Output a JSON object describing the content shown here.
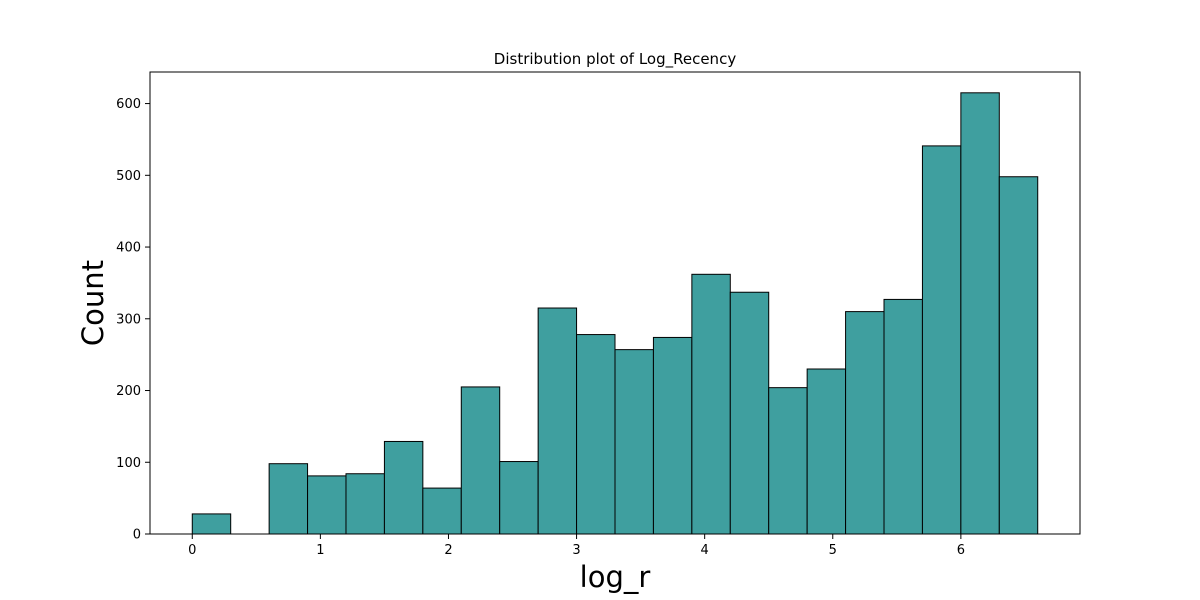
{
  "chart_data": {
    "type": "bar",
    "title": "Distribution plot of Log_Recency",
    "xlabel": "log_r",
    "ylabel": "Count",
    "xlim": [
      -0.33,
      6.93
    ],
    "ylim": [
      0,
      644
    ],
    "xticks": [
      0,
      1,
      2,
      3,
      4,
      5,
      6
    ],
    "yticks": [
      0,
      100,
      200,
      300,
      400,
      500,
      600
    ],
    "grid": false,
    "bar_color": "#3f9f9f",
    "edge_color": "#000000",
    "bin_width": 0.3,
    "bin_starts": [
      0.0,
      0.3,
      0.6,
      0.9,
      1.2,
      1.5,
      1.8,
      2.1,
      2.4,
      2.7,
      3.0,
      3.3,
      3.6,
      3.9,
      4.2,
      4.5,
      4.8,
      5.1,
      5.4,
      5.7,
      6.0,
      6.3
    ],
    "values": [
      28,
      0,
      98,
      81,
      84,
      129,
      64,
      205,
      101,
      315,
      278,
      257,
      274,
      362,
      337,
      204,
      230,
      310,
      327,
      541,
      615,
      498
    ]
  }
}
